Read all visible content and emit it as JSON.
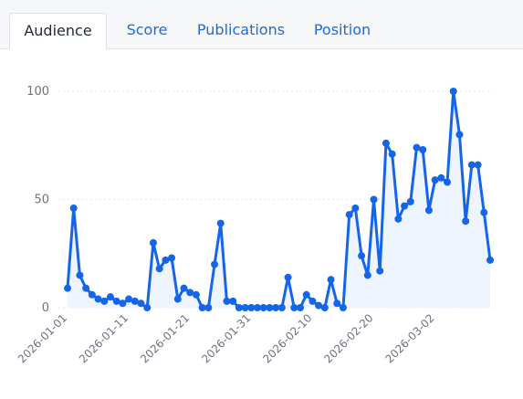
{
  "tabs": [
    {
      "label": "Audience",
      "active": true
    },
    {
      "label": "Score",
      "active": false
    },
    {
      "label": "Publications",
      "active": false
    },
    {
      "label": "Position",
      "active": false
    }
  ],
  "colors": {
    "line": "#1565e8",
    "area": "#eef4fd",
    "grid": "#e3e6ea",
    "tab_active_text": "#1f2937",
    "tab_inactive_text": "#1e6ad6"
  },
  "chart_data": {
    "type": "line",
    "title": "",
    "xlabel": "",
    "ylabel": "",
    "ylim": [
      0,
      100
    ],
    "yticks": [
      0,
      50,
      100
    ],
    "grid": true,
    "area_fill": true,
    "xticks": [
      "2026-01-01",
      "2026-01-11",
      "2026-01-21",
      "2026-01-31",
      "2026-02-10",
      "2026-02-20",
      "2026-03-02"
    ],
    "x": [
      "2026-01-01",
      "2026-01-02",
      "2026-01-03",
      "2026-01-04",
      "2026-01-05",
      "2026-01-06",
      "2026-01-07",
      "2026-01-08",
      "2026-01-09",
      "2026-01-10",
      "2026-01-11",
      "2026-01-12",
      "2026-01-13",
      "2026-01-14",
      "2026-01-15",
      "2026-01-16",
      "2026-01-17",
      "2026-01-18",
      "2026-01-19",
      "2026-01-20",
      "2026-01-21",
      "2026-01-22",
      "2026-01-23",
      "2026-01-24",
      "2026-01-25",
      "2026-01-26",
      "2026-01-27",
      "2026-01-28",
      "2026-01-29",
      "2026-01-30",
      "2026-01-31",
      "2026-02-01",
      "2026-02-02",
      "2026-02-03",
      "2026-02-04",
      "2026-02-05",
      "2026-02-06",
      "2026-02-07",
      "2026-02-08",
      "2026-02-09",
      "2026-02-10",
      "2026-02-11",
      "2026-02-12",
      "2026-02-13",
      "2026-02-14",
      "2026-02-15",
      "2026-02-16",
      "2026-02-17",
      "2026-02-18",
      "2026-02-19",
      "2026-02-20",
      "2026-02-21",
      "2026-02-22",
      "2026-02-23",
      "2026-02-24",
      "2026-02-25",
      "2026-02-26",
      "2026-02-27",
      "2026-02-28",
      "2026-03-01",
      "2026-03-02",
      "2026-03-03",
      "2026-03-04",
      "2026-03-05",
      "2026-03-06",
      "2026-03-07",
      "2026-03-08"
    ],
    "values": [
      9,
      46,
      15,
      9,
      6,
      4,
      3,
      5,
      3,
      2,
      4,
      3,
      2,
      0,
      30,
      18,
      22,
      23,
      4,
      9,
      7,
      6,
      0,
      0,
      20,
      39,
      3,
      3,
      0,
      0,
      0,
      0,
      0,
      0,
      0,
      0,
      14,
      0,
      0,
      6,
      3,
      1,
      0,
      13,
      2,
      0,
      43,
      46,
      24,
      15,
      50,
      17,
      76,
      71,
      41,
      47,
      49,
      74,
      73,
      45,
      59,
      60,
      58,
      100,
      80,
      40,
      66
    ],
    "extra_values": [
      66,
      44,
      22
    ]
  }
}
